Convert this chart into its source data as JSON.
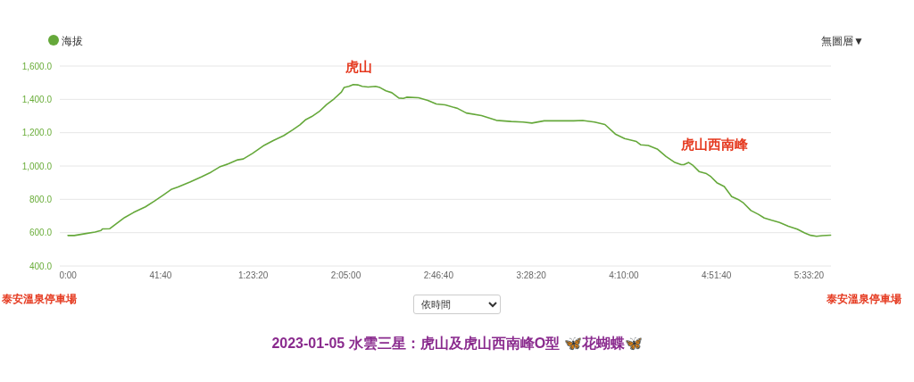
{
  "chart_data": {
    "type": "line",
    "title": "2023-01-05 水雲三星：虎山及虎山西南峰O型 🦋花蝴蝶🦋",
    "x": [
      0,
      170,
      490,
      730,
      890,
      930,
      1130,
      1330,
      1530,
      1770,
      2090,
      2330,
      2570,
      2800,
      2970,
      3290,
      3610,
      3860,
      4090,
      4330,
      4580,
      4730,
      4980,
      5300,
      5540,
      5820,
      6060,
      6260,
      6420,
      6580,
      6780,
      6980,
      7180,
      7380,
      7450,
      7580,
      7700,
      7820,
      7940,
      8100,
      8300,
      8420,
      8580,
      8740,
      8930,
      9050,
      9140,
      9460,
      9710,
      9940,
      10180,
      10520,
      10750,
      11160,
      11560,
      11960,
      12280,
      12520,
      12850,
      13170,
      13650,
      13890,
      14210,
      14490,
      14770,
      15020,
      15340,
      15460,
      15660,
      15900,
      16140,
      16380,
      16550,
      16620,
      16750,
      16870,
      17030,
      17230,
      17350,
      17510,
      17710,
      17910,
      18110,
      18230,
      18430,
      18630,
      18790,
      18990,
      19200,
      19440,
      19680,
      19880,
      20040,
      20200,
      20360,
      20580
    ],
    "series": [
      {
        "name": "海拔",
        "color": "#65a83a",
        "values": [
          583,
          583,
          595,
          604,
          613,
          622,
          624,
          658,
          691,
          721,
          755,
          789,
          825,
          861,
          874,
          904,
          936,
          963,
          994,
          1013,
          1037,
          1042,
          1076,
          1125,
          1153,
          1182,
          1216,
          1247,
          1279,
          1297,
          1327,
          1369,
          1403,
          1444,
          1471,
          1478,
          1489,
          1487,
          1478,
          1474,
          1478,
          1471,
          1451,
          1440,
          1408,
          1406,
          1413,
          1410,
          1394,
          1372,
          1367,
          1345,
          1318,
          1303,
          1274,
          1267,
          1264,
          1258,
          1271,
          1271,
          1271,
          1273,
          1264,
          1249,
          1192,
          1165,
          1147,
          1127,
          1123,
          1102,
          1057,
          1021,
          1008,
          1008,
          1021,
          1003,
          967,
          954,
          936,
          900,
          877,
          817,
          796,
          778,
          733,
          710,
          688,
          674,
          661,
          639,
          621,
          598,
          584,
          578,
          582,
          585
        ]
      }
    ],
    "xlim": [
      -220,
      20590
    ],
    "xticks": [
      {
        "value": 0,
        "label": "0:00"
      },
      {
        "value": 2500,
        "label": "41:40"
      },
      {
        "value": 5000,
        "label": "1:23:20"
      },
      {
        "value": 7500,
        "label": "2:05:00"
      },
      {
        "value": 10000,
        "label": "2:46:40"
      },
      {
        "value": 12500,
        "label": "3:28:20"
      },
      {
        "value": 15000,
        "label": "4:10:00"
      },
      {
        "value": 17500,
        "label": "4:51:40"
      },
      {
        "value": 20000,
        "label": "5:33:20"
      }
    ],
    "ylim": [
      400,
      1600
    ],
    "yticks": [
      {
        "value": 400,
        "label": "400.0"
      },
      {
        "value": 600,
        "label": "600.0"
      },
      {
        "value": 800,
        "label": "800.0"
      },
      {
        "value": 1000,
        "label": "1,000.0"
      },
      {
        "value": 1200,
        "label": "1,200.0"
      },
      {
        "value": 1400,
        "label": "1,400.0"
      },
      {
        "value": 1600,
        "label": "1,600.0"
      }
    ],
    "grid": "y",
    "legend": "top left",
    "annotations": [
      {
        "text": "虎山",
        "x": 7700,
        "y": 1489
      },
      {
        "text": "虎山西南峰",
        "x": 16750,
        "y": 1021
      },
      "泰安溫泉停車場",
      "泰安溫泉停車場",
      "依時間",
      "無圖層▼"
    ]
  }
}
